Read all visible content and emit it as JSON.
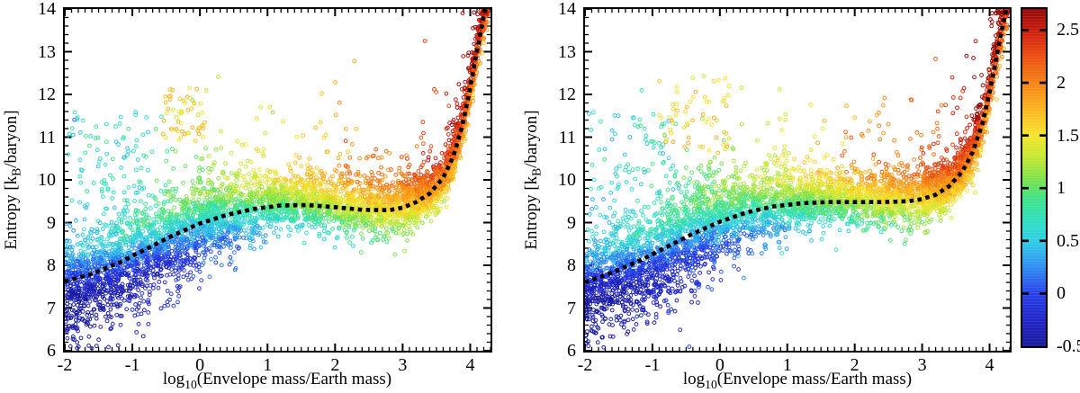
{
  "figure": {
    "background": "#ffffff",
    "axis_color": "#000000",
    "trend_line_color": "#000000"
  },
  "axes": {
    "x": {
      "label_pre": "log",
      "label_sub": "10",
      "label_post": "(Envelope mass/Earth mass)",
      "min": -2,
      "max": 4.3,
      "major_ticks": [
        -2,
        -1,
        0,
        1,
        2,
        3,
        4
      ],
      "major_labels": [
        "-2",
        "-1",
        "0",
        "1",
        "2",
        "3",
        "4"
      ],
      "minor_step": 0.1
    },
    "y": {
      "label_pre": "Entropy [k",
      "label_sub": "B",
      "label_post": "/baryon]",
      "min": 6,
      "max": 14,
      "major_ticks": [
        6,
        7,
        8,
        9,
        10,
        11,
        12,
        13,
        14
      ],
      "major_labels": [
        "6",
        "7",
        "8",
        "9",
        "10",
        "11",
        "12",
        "13",
        "14"
      ],
      "minor_step": 0.2
    }
  },
  "colorbar": {
    "min": -0.5,
    "max": 2.7,
    "ticks": [
      {
        "value": 2.5,
        "label": "2.5",
        "mark": true
      },
      {
        "value": 2.0,
        "label": "2",
        "mark": true
      },
      {
        "value": 1.5,
        "label": "1.5",
        "mark": true
      },
      {
        "value": 1.0,
        "label": "1",
        "mark": true
      },
      {
        "value": 0.5,
        "label": "0.5",
        "mark": true
      },
      {
        "value": 0.0,
        "label": "0",
        "mark": true
      },
      {
        "value": -0.5,
        "label": "-0.5",
        "mark": false
      }
    ]
  },
  "colormap": {
    "stops": [
      [
        -0.5,
        "#181a9e"
      ],
      [
        -0.25,
        "#1f24c8"
      ],
      [
        0.0,
        "#2740ea"
      ],
      [
        0.25,
        "#2e8df0"
      ],
      [
        0.5,
        "#30cfe6"
      ],
      [
        0.7,
        "#2fe0bd"
      ],
      [
        0.9,
        "#3fe287"
      ],
      [
        1.1,
        "#83e246"
      ],
      [
        1.3,
        "#c6e832"
      ],
      [
        1.5,
        "#f6e52b"
      ],
      [
        1.75,
        "#fbb41f"
      ],
      [
        2.0,
        "#f58214"
      ],
      [
        2.25,
        "#ee4d10"
      ],
      [
        2.5,
        "#cb1a0d"
      ],
      [
        2.7,
        "#8e0808"
      ]
    ]
  },
  "chart_data": [
    {
      "type": "scatter",
      "panel": "left",
      "xlabel": "log10(Envelope mass/Earth mass)",
      "ylabel": "Entropy [kB/baryon]",
      "xlim": [
        -2,
        4.3
      ],
      "ylim": [
        6,
        14
      ],
      "color_range": [
        -0.5,
        2.7
      ],
      "trend_line": [
        [
          -2,
          7.62
        ],
        [
          -1.6,
          7.8
        ],
        [
          -1.2,
          8.06
        ],
        [
          -0.8,
          8.38
        ],
        [
          -0.4,
          8.7
        ],
        [
          0,
          8.98
        ],
        [
          0.4,
          9.18
        ],
        [
          0.8,
          9.32
        ],
        [
          1.2,
          9.4
        ],
        [
          1.6,
          9.41
        ],
        [
          2.0,
          9.36
        ],
        [
          2.4,
          9.3
        ],
        [
          2.8,
          9.29
        ],
        [
          3.0,
          9.35
        ],
        [
          3.2,
          9.48
        ],
        [
          3.4,
          9.68
        ],
        [
          3.6,
          10.05
        ],
        [
          3.75,
          10.55
        ],
        [
          3.88,
          11.25
        ],
        [
          3.98,
          12.0
        ],
        [
          4.08,
          12.85
        ],
        [
          4.16,
          13.5
        ],
        [
          4.22,
          14.0
        ]
      ],
      "scatter_model": {
        "seed": 42,
        "n": 5200,
        "marker_radius": 1.9,
        "mixture": [
          {
            "w": 0.4,
            "x0": -2.0,
            "x1": 0.35
          },
          {
            "w": 0.34,
            "x0": 0.35,
            "x1": 3.0
          },
          {
            "w": 0.19,
            "x0": 3.0,
            "x1": 3.85
          },
          {
            "w": 0.07,
            "x0": 3.85,
            "x1": 4.26
          }
        ],
        "spread": [
          {
            "upto": 0,
            "s": 0.55
          },
          {
            "upto": 1,
            "s": 0.45
          },
          {
            "upto": 3.1,
            "s": 0.33
          },
          {
            "upto": 4.3,
            "s": 0.28
          }
        ],
        "heavy_tail_frac": 0.055,
        "heavy_tail_scale": 1.15,
        "down_skew_frac": 0.3,
        "down_skew_scale": 0.45,
        "plateau_bias": 0.07,
        "color_law": {
          "slope": 0.35,
          "intercept": 0.55,
          "dy_gain": 0.9,
          "dy_cap": 0.6,
          "extra_slope_above_x3": 0.28,
          "noise": 0.12
        },
        "clusters": [
          {
            "n": 70,
            "x": [
              -1.95,
              -0.75
            ],
            "y": [
              9.6,
              11.6
            ],
            "c": [
              0.35,
              0.95
            ]
          },
          {
            "n": 55,
            "x": [
              -0.55,
              0.1
            ],
            "y": [
              10.9,
              12.15
            ],
            "c": [
              1.35,
              1.85
            ]
          },
          {
            "n": 25,
            "x": [
              2.0,
              3.3
            ],
            "y": [
              9.9,
              11.0
            ],
            "c": [
              1.9,
              2.35
            ]
          }
        ]
      }
    },
    {
      "type": "scatter",
      "panel": "right",
      "xlabel": "log10(Envelope mass/Earth mass)",
      "ylabel": "Entropy [kB/baryon]",
      "xlim": [
        -2,
        4.3
      ],
      "ylim": [
        6,
        14
      ],
      "color_range": [
        -0.5,
        2.7
      ],
      "trend_line": [
        [
          -2,
          7.6
        ],
        [
          -1.6,
          7.83
        ],
        [
          -1.2,
          8.1
        ],
        [
          -0.8,
          8.42
        ],
        [
          -0.4,
          8.74
        ],
        [
          0,
          9.02
        ],
        [
          0.4,
          9.24
        ],
        [
          0.8,
          9.38
        ],
        [
          1.2,
          9.45
        ],
        [
          1.6,
          9.48
        ],
        [
          2.0,
          9.48
        ],
        [
          2.4,
          9.48
        ],
        [
          2.8,
          9.5
        ],
        [
          3.0,
          9.55
        ],
        [
          3.2,
          9.65
        ],
        [
          3.4,
          9.85
        ],
        [
          3.6,
          10.2
        ],
        [
          3.75,
          10.65
        ],
        [
          3.9,
          11.35
        ],
        [
          4.0,
          12.05
        ],
        [
          4.1,
          12.85
        ],
        [
          4.18,
          13.5
        ],
        [
          4.25,
          14.0
        ]
      ],
      "scatter_model": {
        "seed": 1337,
        "n": 5200,
        "marker_radius": 1.9,
        "mixture": [
          {
            "w": 0.4,
            "x0": -2.0,
            "x1": 0.35
          },
          {
            "w": 0.34,
            "x0": 0.35,
            "x1": 3.0
          },
          {
            "w": 0.19,
            "x0": 3.0,
            "x1": 3.85
          },
          {
            "w": 0.07,
            "x0": 3.85,
            "x1": 4.27
          }
        ],
        "spread": [
          {
            "upto": 0,
            "s": 0.55
          },
          {
            "upto": 1,
            "s": 0.45
          },
          {
            "upto": 3.1,
            "s": 0.33
          },
          {
            "upto": 4.3,
            "s": 0.28
          }
        ],
        "heavy_tail_frac": 0.055,
        "heavy_tail_scale": 1.15,
        "down_skew_frac": 0.3,
        "down_skew_scale": 0.45,
        "plateau_bias": 0.07,
        "color_law": {
          "slope": 0.35,
          "intercept": 0.55,
          "dy_gain": 0.9,
          "dy_cap": 0.6,
          "extra_slope_above_x3": 0.28,
          "noise": 0.12
        },
        "clusters": [
          {
            "n": 75,
            "x": [
              -1.95,
              -0.6
            ],
            "y": [
              9.5,
              11.6
            ],
            "c": [
              0.35,
              0.95
            ]
          },
          {
            "n": 60,
            "x": [
              -0.9,
              0.15
            ],
            "y": [
              10.6,
              12.4
            ],
            "c": [
              1.3,
              1.85
            ]
          },
          {
            "n": 25,
            "x": [
              1.8,
              3.2
            ],
            "y": [
              10.0,
              11.2
            ],
            "c": [
              1.9,
              2.3
            ]
          }
        ]
      }
    }
  ]
}
